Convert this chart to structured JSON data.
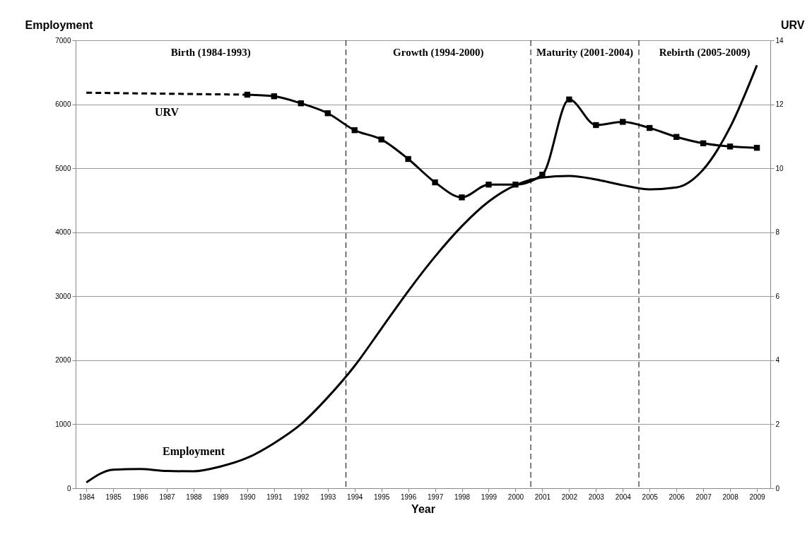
{
  "chart_data": {
    "type": "line",
    "xlabel": "Year",
    "ylabel": "Employment",
    "y2label": "URV",
    "x": [
      1984,
      1985,
      1986,
      1987,
      1988,
      1989,
      1990,
      1991,
      1992,
      1993,
      1994,
      1995,
      1996,
      1997,
      1998,
      1999,
      2000,
      2001,
      2002,
      2003,
      2004,
      2005,
      2006,
      2007,
      2008,
      2009
    ],
    "xlim": [
      1983.6,
      2009.5
    ],
    "xticks": [
      1984,
      1985,
      1986,
      1987,
      1988,
      1989,
      1990,
      1991,
      1992,
      1993,
      1994,
      1995,
      1996,
      1997,
      1998,
      1999,
      2000,
      2001,
      2002,
      2003,
      2004,
      2005,
      2006,
      2007,
      2008,
      2009
    ],
    "ylim": [
      0,
      7000
    ],
    "yticks": [
      0,
      1000,
      2000,
      3000,
      4000,
      5000,
      6000,
      7000
    ],
    "y2lim": [
      0,
      14
    ],
    "y2ticks": [
      0,
      2,
      4,
      6,
      8,
      10,
      12,
      14
    ],
    "grid": "y",
    "series": [
      {
        "name": "Employment",
        "color": "#000000",
        "marker": "none",
        "line_style": "solid",
        "values": [
          90,
          290,
          300,
          270,
          265,
          340,
          475,
          705,
          1000,
          1420,
          1910,
          2495,
          3080,
          3620,
          4095,
          4480,
          4735,
          4855,
          4880,
          4825,
          4735,
          4670,
          4700,
          4980,
          5640,
          6610
        ]
      },
      {
        "name": "URV",
        "color": "#000000",
        "axis": "y2",
        "marker": "none",
        "line_style": "dashed",
        "x": [
          1984,
          1987,
          1990
        ],
        "values": [
          12.36,
          12.33,
          12.3
        ]
      },
      {
        "color": "#000000",
        "axis": "y2",
        "marker": "square",
        "line_style": "solid",
        "x": [
          1990,
          1991,
          1992,
          1993,
          1994,
          1995,
          1996,
          1997,
          1998,
          1999,
          2000,
          2001,
          2002,
          2003,
          2004,
          2005,
          2006,
          2007,
          2008,
          2009
        ],
        "values": [
          12.3,
          12.25,
          12.03,
          11.72,
          11.19,
          10.9,
          10.29,
          9.56,
          9.09,
          9.49,
          9.49,
          9.8,
          12.15,
          11.35,
          11.45,
          11.26,
          10.98,
          10.78,
          10.68,
          10.64
        ]
      }
    ],
    "ref_lines": [
      {
        "axis": "x",
        "value": 1993.68,
        "line_style": "dashed"
      },
      {
        "axis": "x",
        "value": 2000.57,
        "line_style": "dashed"
      },
      {
        "axis": "x",
        "value": 2004.6,
        "line_style": "dashed"
      }
    ],
    "annotations": [
      "Birth (1984-1993)",
      "Growth (1994-2000)",
      "Maturity (2001-2004)",
      "Rebirth (2005-2009)"
    ]
  }
}
